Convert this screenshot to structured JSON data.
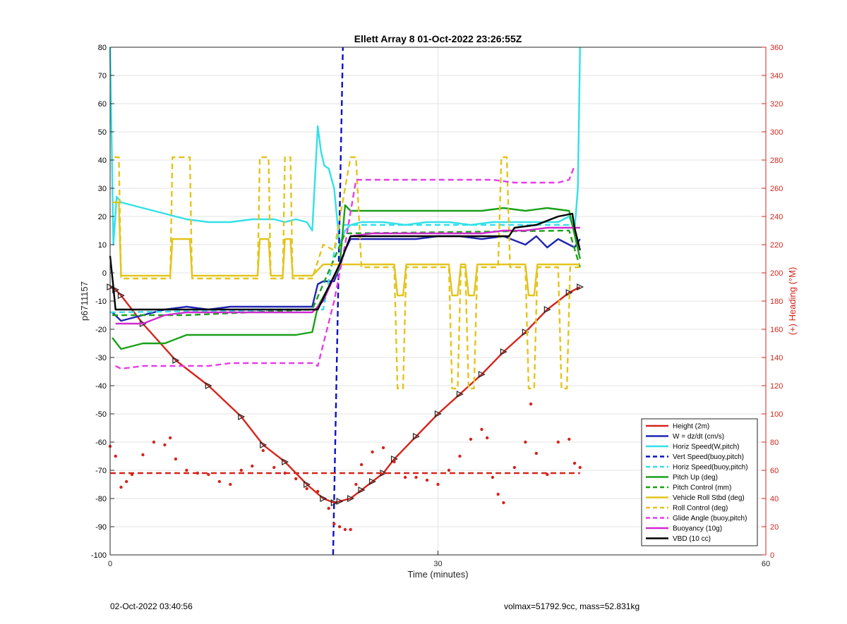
{
  "chart_data": {
    "type": "line",
    "title": "Ellett Array 8 01-Oct-2022 23:26:55Z",
    "xlabel": "Time (minutes)",
    "ylabel": "p6711157",
    "y2label": "(+) Heading (°M)",
    "xlim": [
      0,
      60
    ],
    "ylim": [
      -100,
      80
    ],
    "y2lim": [
      0,
      360
    ],
    "x_ticks": [
      0,
      30,
      60
    ],
    "y_ticks": [
      -100,
      -90,
      -80,
      -70,
      -60,
      -50,
      -40,
      -30,
      -20,
      -10,
      0,
      10,
      20,
      30,
      40,
      50,
      60,
      70,
      80
    ],
    "y2_ticks": [
      0,
      20,
      40,
      60,
      80,
      100,
      120,
      140,
      160,
      180,
      200,
      220,
      240,
      260,
      280,
      300,
      320,
      340,
      360
    ],
    "grid": true,
    "legend_position": "bottom-right",
    "colors": {
      "left_axis": "#000000",
      "right_axis": "#d4251c",
      "grid": "#e3e3e3",
      "height": "#d4251c",
      "w": "#1f26b4",
      "horiz": "#33e0e8",
      "vert_buoy": "#0a10c8",
      "pitch": "#1aa01a",
      "roll": "#e3c41d",
      "glide": "#e63de6",
      "buoyancy": "#d02ad0",
      "vbd": "#000000"
    },
    "series": [
      {
        "name": "Height (2m)",
        "axis": "left",
        "style": "solid",
        "color": "#d4251c",
        "markers": "triangle",
        "x": [
          0,
          0.5,
          1,
          3,
          6,
          9,
          12,
          14,
          16,
          18,
          19.5,
          20.5,
          21,
          22,
          23,
          24,
          25,
          26,
          28,
          30,
          32,
          34,
          36,
          38,
          40,
          42,
          43
        ],
        "y": [
          -5,
          -6,
          -8,
          -18,
          -31,
          -40,
          -51,
          -61,
          -67,
          -75,
          -80,
          -81.5,
          -81,
          -80,
          -77,
          -74,
          -71,
          -66,
          -58,
          -50,
          -43,
          -36,
          -28,
          -21,
          -13,
          -7,
          -5
        ]
      },
      {
        "name": "W = dz/dt (cm/s)",
        "axis": "left",
        "style": "solid",
        "color": "#1f26b4",
        "x": [
          0.2,
          1,
          3,
          5,
          7,
          9,
          11,
          13,
          15,
          17,
          18.5,
          19,
          19.5,
          20,
          20.5,
          21,
          21.5,
          22,
          24,
          26,
          28,
          30,
          32,
          34,
          36,
          38,
          39,
          40,
          41,
          42,
          42.5,
          43
        ],
        "y": [
          -14,
          -17,
          -15,
          -13,
          -12,
          -13,
          -12,
          -12,
          -12,
          -12,
          -12,
          -4,
          -3,
          -3,
          -3,
          2,
          8,
          12,
          12,
          12,
          12,
          13,
          13,
          12,
          13,
          10,
          13,
          9,
          12,
          10,
          9,
          12
        ]
      },
      {
        "name": "Horiz Speed(W,pitch)",
        "axis": "left",
        "style": "solid",
        "color": "#33e0e8",
        "x": [
          0,
          0.3,
          0.6,
          1,
          3,
          5,
          7,
          9,
          11,
          13,
          15,
          16,
          17,
          18,
          18.5,
          19,
          19.3,
          19.6,
          20,
          20.5,
          21,
          21.5,
          22,
          23,
          25,
          27,
          29,
          31,
          33,
          35,
          37,
          39,
          41,
          42,
          42.5,
          42.8,
          43
        ],
        "y": [
          80,
          10,
          27,
          25,
          23,
          21,
          19,
          18,
          18,
          19,
          19,
          18,
          19,
          18,
          15,
          52,
          43,
          38,
          37,
          30,
          10,
          15,
          17,
          18,
          18,
          17,
          18,
          18,
          17,
          18,
          18,
          18,
          18,
          20,
          15,
          30,
          80
        ]
      },
      {
        "name": "Vert Speed(buoy,pitch)",
        "axis": "left",
        "style": "dash",
        "color": "#0a10c8",
        "x": [
          20.4,
          21.3
        ],
        "y": [
          -100,
          80
        ]
      },
      {
        "name": "Horiz Speed(buoy,pitch)",
        "axis": "left",
        "style": "dash",
        "color": "#33e0e8",
        "x": [
          0,
          19.5,
          21,
          42.5
        ],
        "y": [
          -14,
          -13,
          17,
          17
        ]
      },
      {
        "name": "Pitch Up (deg)",
        "axis": "left",
        "style": "solid",
        "color": "#1aa01a",
        "x": [
          0.2,
          1,
          3,
          5,
          7,
          9,
          11,
          13,
          15,
          17,
          18.5,
          19,
          20,
          21,
          21.5,
          22,
          24,
          26,
          28,
          30,
          32,
          34,
          36,
          38,
          40,
          42,
          43
        ],
        "y": [
          -23,
          -27,
          -25,
          -25,
          -22,
          -22,
          -22,
          -22,
          -22,
          -22,
          -21,
          -12,
          -5,
          2,
          24,
          22,
          22,
          22,
          22,
          22,
          22,
          22,
          23,
          22,
          23,
          22,
          5
        ]
      },
      {
        "name": "Pitch Control (mm)",
        "axis": "left",
        "style": "dash",
        "color": "#1aa01a",
        "x": [
          0.2,
          7,
          18.5,
          21.5,
          42,
          43
        ],
        "y": [
          -15,
          -15,
          -13,
          14,
          15,
          2
        ]
      },
      {
        "name": "Vehicle Roll Stbd (deg)",
        "axis": "left",
        "style": "solid",
        "color": "#e3c41d",
        "x": [
          0.2,
          0.8,
          1,
          5.5,
          5.7,
          7.3,
          7.5,
          13.5,
          13.7,
          14.5,
          14.7,
          15.8,
          16,
          16.5,
          16.7,
          18.5,
          19.5,
          21,
          23,
          26,
          26.3,
          26.8,
          27.1,
          28,
          31,
          31.3,
          31.8,
          32.1,
          32.5,
          32.8,
          33.3,
          33.6,
          35.5,
          36.5,
          37,
          38,
          38.3,
          38.8,
          39.1,
          42,
          43
        ],
        "y": [
          25,
          25,
          -1,
          -1,
          12,
          12,
          -1,
          -1,
          12,
          12,
          -1,
          -1,
          12,
          12,
          -1,
          -1,
          3,
          3,
          3,
          3,
          -8,
          -8,
          3,
          3,
          3,
          -8,
          -8,
          3,
          3,
          -8,
          -8,
          3,
          3,
          3,
          3,
          3,
          -8,
          -8,
          3,
          3,
          3
        ]
      },
      {
        "name": "Roll Control (deg)",
        "axis": "left",
        "style": "dash",
        "color": "#e3c41d",
        "x": [
          0.4,
          0.8,
          1,
          5.5,
          5.7,
          7.3,
          7.5,
          13.5,
          13.7,
          14.5,
          14.7,
          15.8,
          16,
          16.5,
          16.7,
          18.5,
          19.5,
          20.5,
          22,
          22.5,
          23,
          26,
          26.3,
          26.8,
          27.1,
          28,
          31,
          31.3,
          31.8,
          32.1,
          32.5,
          32.8,
          33.3,
          33.6,
          35.5,
          35.8,
          36.3,
          36.6,
          37,
          38,
          38.3,
          38.8,
          39.1,
          41,
          41.3,
          41.8,
          42.1,
          43
        ],
        "y": [
          41,
          41,
          -2,
          -2,
          41,
          41,
          -2,
          -2,
          41,
          41,
          -2,
          -2,
          41,
          41,
          -2,
          -2,
          10,
          8,
          41,
          41,
          2,
          2,
          -41,
          -41,
          2,
          2,
          2,
          -41,
          -41,
          2,
          2,
          -41,
          -41,
          2,
          2,
          41,
          41,
          2,
          2,
          2,
          -41,
          -41,
          2,
          2,
          -41,
          -41,
          2,
          2
        ]
      },
      {
        "name": "Glide Angle (buoy,pitch)",
        "axis": "left",
        "style": "dash",
        "color": "#e63de6",
        "x": [
          0.5,
          1,
          3,
          5,
          7,
          9,
          11,
          13,
          15,
          17,
          18.5,
          19,
          20.5,
          21.5,
          22.5,
          23,
          25,
          27,
          29,
          31,
          33,
          35,
          37,
          39,
          41,
          42,
          42.5
        ],
        "y": [
          -33,
          -34,
          -33,
          -33,
          -33,
          -33,
          -32,
          -32,
          -32,
          -32,
          -32,
          -33,
          -10,
          10,
          33,
          33,
          33,
          33,
          33,
          33,
          33,
          33,
          32,
          32,
          32,
          33,
          38
        ]
      },
      {
        "name": "Buoyancy (10g)",
        "axis": "left",
        "style": "solid",
        "color": "#d02ad0",
        "x": [
          0.5,
          3,
          5,
          7,
          9,
          11,
          13,
          15,
          17,
          18.5,
          19.5,
          21,
          22,
          24,
          26,
          28,
          30,
          32,
          34,
          36,
          38,
          40,
          42,
          43
        ],
        "y": [
          -18,
          -18,
          -15,
          -14,
          -14,
          -14,
          -14,
          -14,
          -14,
          -14,
          -10,
          3,
          13,
          14,
          14,
          14,
          14,
          14,
          14,
          15,
          15,
          16,
          16,
          16
        ]
      },
      {
        "name": "VBD (10 cc)",
        "axis": "left",
        "style": "solid",
        "color": "#000000",
        "x": [
          0,
          0.3,
          0.5,
          3,
          6,
          9,
          12,
          15,
          18,
          19,
          21,
          22,
          23,
          26,
          29,
          32,
          35,
          36.5,
          37,
          39,
          41,
          42.3,
          42.5,
          43
        ],
        "y": [
          6,
          -5,
          -13,
          -13,
          -13,
          -13,
          -13,
          -13,
          -13,
          -13,
          3,
          13,
          13,
          13,
          13,
          13,
          13,
          13,
          16,
          17,
          20,
          21,
          16,
          8
        ]
      },
      {
        "name": "Heading",
        "axis": "right",
        "style": "dots",
        "color": "#d4251c",
        "x": [
          0,
          0.5,
          1,
          1.5,
          2,
          3,
          4,
          5,
          5.5,
          6,
          7,
          8,
          9,
          10,
          11,
          12,
          13,
          14,
          15,
          16,
          17,
          18,
          19,
          20,
          20.5,
          21,
          21.5,
          22,
          22.5,
          23,
          24,
          25,
          26,
          27,
          28,
          29,
          30,
          31,
          32,
          33,
          34,
          34.5,
          35,
          35.5,
          36,
          37,
          38,
          38.5,
          39,
          40,
          41,
          42,
          42.5,
          43
        ],
        "y": [
          77,
          70,
          48,
          52,
          57,
          71,
          80,
          78,
          83,
          68,
          60,
          58,
          57,
          52,
          50,
          60,
          63,
          74,
          62,
          58,
          54,
          47,
          45,
          33,
          22,
          20,
          18,
          18,
          50,
          64,
          73,
          76,
          66,
          55,
          55,
          53,
          50,
          60,
          70,
          82,
          89,
          83,
          55,
          43,
          37,
          62,
          80,
          107,
          72,
          57,
          80,
          82,
          65,
          62
        ]
      },
      {
        "name": "Heading ref",
        "axis": "right",
        "style": "dash",
        "color": "#d4251c",
        "x": [
          0,
          43
        ],
        "y": [
          58,
          58
        ]
      }
    ]
  },
  "legend": {
    "items": [
      {
        "label": "Height (2m)",
        "color": "#d4251c",
        "style": "solid"
      },
      {
        "label": "W = dz/dt (cm/s)",
        "color": "#1f26b4",
        "style": "solid"
      },
      {
        "label": "Horiz Speed(W,pitch)",
        "color": "#33e0e8",
        "style": "solid"
      },
      {
        "label": "Vert Speed(buoy,pitch)",
        "color": "#0a10c8",
        "style": "dash"
      },
      {
        "label": "Horiz Speed(buoy,pitch)",
        "color": "#33e0e8",
        "style": "dash"
      },
      {
        "label": "Pitch Up (deg)",
        "color": "#1aa01a",
        "style": "solid"
      },
      {
        "label": "Pitch Control (mm)",
        "color": "#1aa01a",
        "style": "dash"
      },
      {
        "label": "Vehicle Roll Stbd (deg)",
        "color": "#e3c41d",
        "style": "solid"
      },
      {
        "label": "Roll Control (deg)",
        "color": "#e3c41d",
        "style": "dash"
      },
      {
        "label": "Glide Angle (buoy,pitch)",
        "color": "#e63de6",
        "style": "dash"
      },
      {
        "label": "Buoyancy (10g)",
        "color": "#d02ad0",
        "style": "solid"
      },
      {
        "label": "VBD (10 cc)",
        "color": "#000000",
        "style": "solid"
      }
    ]
  },
  "footer": {
    "timestamp": "02-Oct-2022 03:40:56",
    "stats": "volmax=51792.9cc, mass=52.831kg"
  }
}
